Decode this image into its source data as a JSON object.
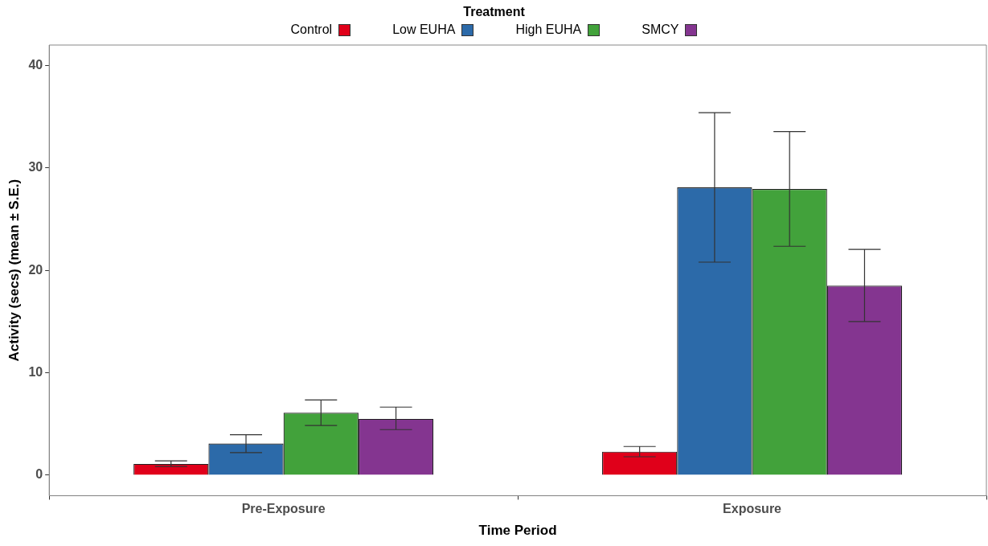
{
  "chart_data": {
    "type": "bar",
    "xlabel": "Time Period",
    "ylabel": "Activity (secs) (mean ± S.E.)",
    "legend_title": "Treatment",
    "legend": "top",
    "grid": false,
    "categories": [
      "Pre-Exposure",
      "Exposure"
    ],
    "ylim": [
      -2,
      42
    ],
    "yticks": [
      0,
      10,
      20,
      30,
      40
    ],
    "series": [
      {
        "name": "Control",
        "color": "#e0001a",
        "values": [
          1.1,
          2.3
        ],
        "errors": [
          [
            0.85,
            1.4
          ],
          [
            1.8,
            2.8
          ]
        ]
      },
      {
        "name": "Low EUHA",
        "color": "#2c6aa9",
        "values": [
          3.1,
          28.1
        ],
        "errors": [
          [
            2.2,
            3.95
          ],
          [
            20.8,
            35.4
          ]
        ]
      },
      {
        "name": "High EUHA",
        "color": "#42a23b",
        "values": [
          6.1,
          27.95
        ],
        "errors": [
          [
            4.85,
            7.35
          ],
          [
            22.35,
            33.55
          ]
        ]
      },
      {
        "name": "SMCY",
        "color": "#843590",
        "values": [
          5.5,
          18.5
        ],
        "errors": [
          [
            4.45,
            6.65
          ],
          [
            15,
            22.05
          ]
        ]
      }
    ]
  }
}
